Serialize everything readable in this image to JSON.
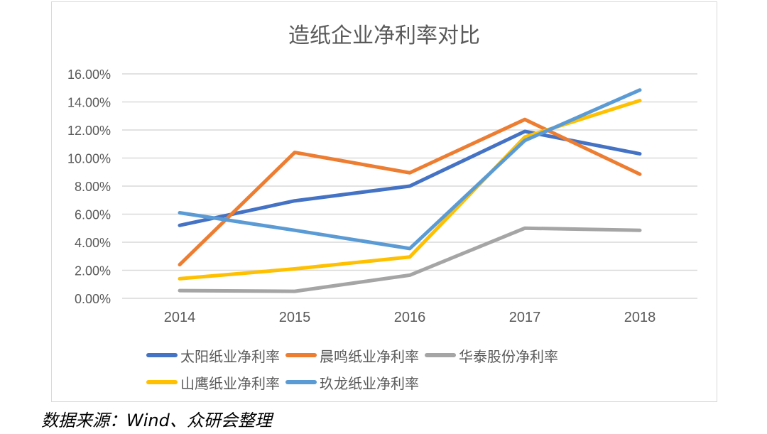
{
  "chart_data": {
    "type": "line",
    "title": "造纸企业净利率对比",
    "xlabel": "",
    "ylabel": "",
    "categories": [
      "2014",
      "2015",
      "2016",
      "2017",
      "2018"
    ],
    "ylim": [
      0,
      16
    ],
    "yticks": [
      "0.00%",
      "2.00%",
      "4.00%",
      "6.00%",
      "8.00%",
      "10.00%",
      "12.00%",
      "14.00%",
      "16.00%"
    ],
    "grid": true,
    "legend_position": "bottom",
    "unit": "%",
    "series": [
      {
        "name": "太阳纸业净利率",
        "color": "#4472C4",
        "values": [
          5.2,
          6.95,
          8.0,
          11.9,
          10.3
        ]
      },
      {
        "name": "晨鸣纸业净利率",
        "color": "#ED7D31",
        "values": [
          2.4,
          10.4,
          8.95,
          12.75,
          8.85
        ]
      },
      {
        "name": "华泰股份净利率",
        "color": "#A5A5A5",
        "values": [
          0.55,
          0.5,
          1.65,
          5.0,
          4.85
        ]
      },
      {
        "name": "山鹰纸业净利率",
        "color": "#FFC000",
        "values": [
          1.4,
          2.1,
          2.95,
          11.5,
          14.1
        ]
      },
      {
        "name": "玖龙纸业净利率",
        "color": "#5B9BD5",
        "values": [
          6.1,
          4.85,
          3.55,
          11.25,
          14.85
        ]
      }
    ]
  },
  "source_note": "数据来源：Wind、众研会整理"
}
